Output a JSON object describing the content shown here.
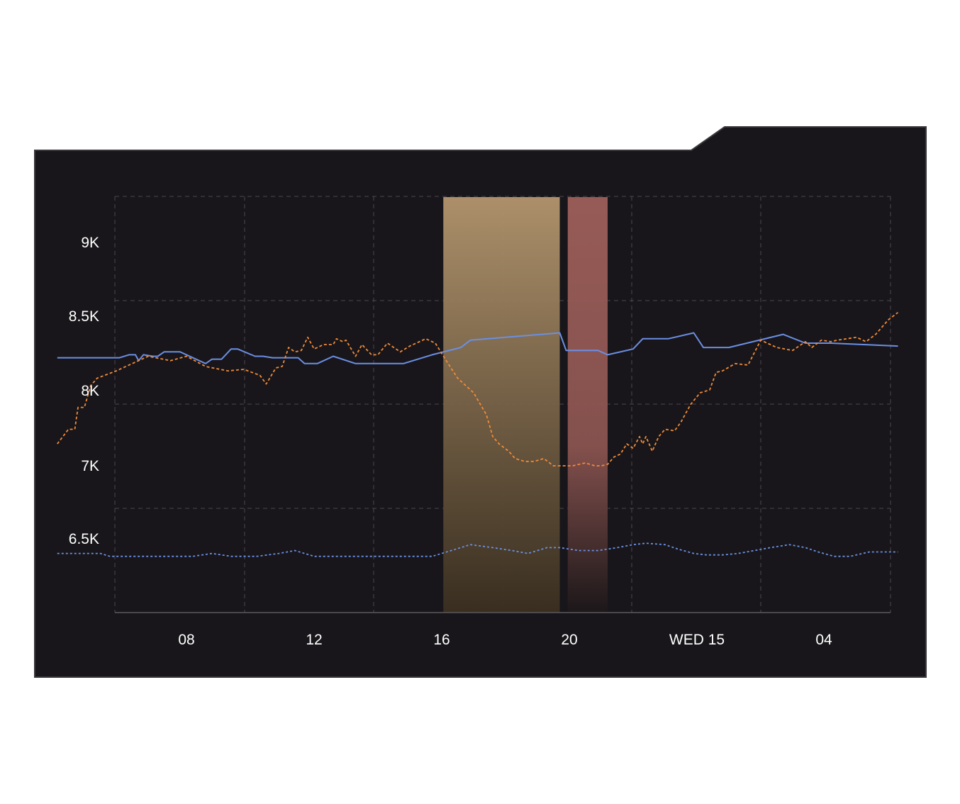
{
  "chart_data": {
    "type": "line",
    "title": "",
    "xlabel": "",
    "ylabel": "",
    "x_ticks": [
      "08",
      "12",
      "16",
      "20",
      "WED 15",
      "04"
    ],
    "y_ticks": [
      "9K",
      "8.5K",
      "8K",
      "7K",
      "6.5K"
    ],
    "grid": true,
    "highlight_bands": [
      {
        "name": "band-1",
        "start_hour": 16.05,
        "end_hour": 19.7,
        "color": "#b4966e"
      },
      {
        "name": "band-2",
        "start_hour": 19.95,
        "end_hour": 21.2,
        "color": "#9e5f5a"
      }
    ],
    "series": [
      {
        "style": "solid",
        "color": "#6b8fe4",
        "x_hours": [
          3.95,
          5.9,
          6.2,
          6.4,
          6.5,
          6.65,
          6.95,
          7.1,
          7.3,
          7.4,
          7.8,
          8.6,
          8.8,
          9.1,
          9.4,
          9.6,
          10.15,
          10.4,
          10.7,
          11.5,
          11.7,
          12.1,
          12.6,
          13.3,
          13.5,
          14.1,
          14.5,
          14.8,
          15.7,
          16.6,
          16.9,
          19.7,
          19.9,
          20.9,
          21.2,
          22.0,
          22.3,
          23.1,
          23.9,
          24.2,
          25.0,
          26.7,
          27.4,
          28.2,
          30.3
        ],
        "values": [
          7740,
          7740,
          7760,
          7760,
          7720,
          7760,
          7750,
          7750,
          7780,
          7780,
          7780,
          7700,
          7730,
          7730,
          7800,
          7800,
          7750,
          7750,
          7740,
          7740,
          7700,
          7700,
          7750,
          7700,
          7700,
          7700,
          7700,
          7700,
          7760,
          7810,
          7860,
          7910,
          7790,
          7790,
          7760,
          7800,
          7870,
          7870,
          7910,
          7810,
          7810,
          7900,
          7840,
          7840,
          7820
        ]
      },
      {
        "style": "dashed",
        "color": "#f08a3a",
        "x_hours": [
          3.95,
          4.3,
          4.5,
          4.6,
          4.8,
          5.0,
          5.2,
          5.8,
          6.3,
          6.8,
          7.5,
          8.0,
          8.6,
          9.3,
          9.8,
          10.3,
          10.5,
          10.8,
          11.0,
          11.2,
          11.4,
          11.6,
          11.8,
          12.0,
          12.3,
          12.6,
          12.7,
          12.9,
          13.0,
          13.3,
          13.5,
          13.8,
          14.0,
          14.3,
          14.7,
          15.0,
          15.5,
          15.8,
          16.2,
          16.5,
          17.0,
          17.4,
          17.6,
          17.8,
          18.1,
          18.3,
          18.6,
          18.9,
          19.2,
          19.5,
          19.8,
          20.1,
          20.5,
          20.8,
          21.0,
          21.2,
          21.4,
          21.6,
          21.8,
          22.0,
          22.2,
          22.3,
          22.4,
          22.6,
          22.8,
          23.0,
          23.3,
          23.5,
          23.8,
          24.1,
          24.4,
          24.6,
          24.8,
          25.2,
          25.6,
          26.0,
          26.5,
          27.0,
          27.4,
          27.6,
          27.9,
          28.2,
          28.4,
          28.7,
          29.0,
          29.3,
          29.6,
          30.0,
          30.3
        ],
        "values": [
          7150,
          7250,
          7250,
          7400,
          7400,
          7550,
          7600,
          7650,
          7700,
          7750,
          7720,
          7750,
          7680,
          7650,
          7660,
          7620,
          7560,
          7670,
          7680,
          7810,
          7780,
          7790,
          7880,
          7800,
          7830,
          7830,
          7870,
          7850,
          7860,
          7750,
          7830,
          7760,
          7760,
          7840,
          7780,
          7820,
          7870,
          7840,
          7700,
          7600,
          7500,
          7350,
          7200,
          7150,
          7100,
          7050,
          7030,
          7030,
          7050,
          7000,
          7000,
          7000,
          7020,
          7000,
          7000,
          7010,
          7060,
          7080,
          7150,
          7120,
          7200,
          7150,
          7200,
          7100,
          7200,
          7250,
          7240,
          7300,
          7420,
          7500,
          7520,
          7640,
          7650,
          7700,
          7690,
          7860,
          7810,
          7790,
          7850,
          7810,
          7860,
          7850,
          7860,
          7870,
          7880,
          7850,
          7900,
          8000,
          8050
        ]
      },
      {
        "style": "dotted",
        "color": "#6b8fe4",
        "x_hours": [
          3.95,
          5.3,
          5.6,
          6.0,
          6.5,
          7.0,
          7.5,
          8.2,
          8.8,
          9.4,
          10.2,
          10.9,
          11.4,
          12.0,
          12.6,
          13.3,
          13.8,
          14.4,
          15.0,
          15.7,
          16.3,
          16.9,
          17.6,
          18.2,
          18.7,
          19.3,
          19.7,
          20.3,
          20.9,
          21.5,
          22.0,
          22.4,
          23.0,
          23.4,
          23.9,
          24.3,
          24.8,
          25.3,
          25.8,
          26.3,
          26.9,
          27.4,
          27.8,
          28.3,
          28.8,
          29.4,
          30.3
        ],
        "values": [
          6400,
          6400,
          6380,
          6380,
          6380,
          6380,
          6380,
          6380,
          6400,
          6380,
          6380,
          6400,
          6420,
          6380,
          6380,
          6380,
          6380,
          6380,
          6380,
          6380,
          6420,
          6460,
          6440,
          6420,
          6400,
          6440,
          6440,
          6420,
          6420,
          6440,
          6460,
          6470,
          6460,
          6430,
          6400,
          6390,
          6390,
          6400,
          6420,
          6440,
          6460,
          6440,
          6410,
          6380,
          6380,
          6410,
          6410
        ]
      }
    ]
  }
}
